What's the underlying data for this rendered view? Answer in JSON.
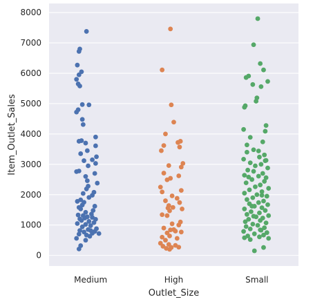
{
  "chart_data": {
    "type": "scatter",
    "subtype": "strip",
    "xlabel": "Outlet_Size",
    "ylabel": "Item_Outlet_Sales",
    "categories": [
      "Medium",
      "High",
      "Small"
    ],
    "ylim": [
      -350,
      8300
    ],
    "yticks": [
      0,
      1000,
      2000,
      3000,
      4000,
      5000,
      6000,
      7000,
      8000
    ],
    "grid": true,
    "background": "#eaeaf2",
    "grid_color": "#ffffff",
    "series": [
      {
        "category": "Medium",
        "color": "#4c72b0",
        "points": [
          [
            -0.05,
            7380
          ],
          [
            -0.13,
            6800
          ],
          [
            -0.14,
            6720
          ],
          [
            -0.16,
            6270
          ],
          [
            -0.11,
            6050
          ],
          [
            -0.14,
            5950
          ],
          [
            -0.17,
            5800
          ],
          [
            -0.15,
            5650
          ],
          [
            -0.13,
            5580
          ],
          [
            -0.1,
            4970
          ],
          [
            -0.02,
            4960
          ],
          [
            -0.15,
            4800
          ],
          [
            -0.17,
            4720
          ],
          [
            -0.1,
            4480
          ],
          [
            -0.09,
            4310
          ],
          [
            0.06,
            3900
          ],
          [
            -0.14,
            3760
          ],
          [
            -0.06,
            3700
          ],
          [
            -0.11,
            3780
          ],
          [
            0.06,
            3610
          ],
          [
            -0.04,
            3450
          ],
          [
            -0.12,
            3350
          ],
          [
            0.07,
            3250
          ],
          [
            0.02,
            3150
          ],
          [
            -0.08,
            3120
          ],
          [
            0.06,
            3030
          ],
          [
            -0.03,
            2950
          ],
          [
            -0.14,
            2780
          ],
          [
            -0.17,
            2760
          ],
          [
            0.05,
            2700
          ],
          [
            -0.06,
            2600
          ],
          [
            -0.04,
            2460
          ],
          [
            0.08,
            2380
          ],
          [
            -0.03,
            2280
          ],
          [
            -0.05,
            2190
          ],
          [
            0.04,
            2080
          ],
          [
            -0.09,
            2040
          ],
          [
            0.02,
            1980
          ],
          [
            -0.02,
            1910
          ],
          [
            -0.12,
            1830
          ],
          [
            -0.16,
            1780
          ],
          [
            -0.08,
            1750
          ],
          [
            -0.1,
            1660
          ],
          [
            0.05,
            1620
          ],
          [
            -0.14,
            1580
          ],
          [
            -0.12,
            1530
          ],
          [
            0.03,
            1480
          ],
          [
            -0.06,
            1420
          ],
          [
            0.01,
            1360
          ],
          [
            -0.15,
            1330
          ],
          [
            -0.09,
            1310
          ],
          [
            -0.04,
            1270
          ],
          [
            0.02,
            1250
          ],
          [
            -0.07,
            1230
          ],
          [
            -0.13,
            1200
          ],
          [
            0.06,
            1190
          ],
          [
            -0.11,
            1150
          ],
          [
            -0.02,
            1120
          ],
          [
            0.04,
            1080
          ],
          [
            -0.16,
            1050
          ],
          [
            -0.06,
            1020
          ],
          [
            0.0,
            980
          ],
          [
            -0.1,
            940
          ],
          [
            0.07,
            880
          ],
          [
            -0.03,
            850
          ],
          [
            -0.13,
            820
          ],
          [
            0.05,
            790
          ],
          [
            -0.08,
            770
          ],
          [
            0.02,
            730
          ],
          [
            -0.14,
            700
          ],
          [
            0.1,
            720
          ],
          [
            -0.05,
            670
          ],
          [
            -0.01,
            630
          ],
          [
            -0.17,
            560
          ],
          [
            -0.06,
            500
          ],
          [
            -0.12,
            320
          ],
          [
            -0.14,
            210
          ],
          [
            0.0,
            820
          ]
        ]
      },
      {
        "category": "High",
        "color": "#dd8452",
        "points": [
          [
            -0.04,
            7460
          ],
          [
            -0.14,
            6110
          ],
          [
            -0.03,
            4960
          ],
          [
            0.0,
            4390
          ],
          [
            -0.1,
            4000
          ],
          [
            0.08,
            3760
          ],
          [
            0.05,
            3720
          ],
          [
            -0.12,
            3620
          ],
          [
            -0.15,
            3450
          ],
          [
            0.07,
            3570
          ],
          [
            0.11,
            3030
          ],
          [
            -0.06,
            2960
          ],
          [
            0.09,
            2910
          ],
          [
            -0.12,
            2710
          ],
          [
            0.06,
            2620
          ],
          [
            -0.04,
            2540
          ],
          [
            -0.08,
            2490
          ],
          [
            -0.16,
            2250
          ],
          [
            0.09,
            2140
          ],
          [
            -0.14,
            2090
          ],
          [
            -0.02,
            1960
          ],
          [
            0.04,
            1880
          ],
          [
            -0.1,
            1800
          ],
          [
            0.07,
            1740
          ],
          [
            -0.06,
            1640
          ],
          [
            -0.01,
            1580
          ],
          [
            0.1,
            1530
          ],
          [
            -0.05,
            1470
          ],
          [
            -0.14,
            1340
          ],
          [
            -0.08,
            1310
          ],
          [
            0.08,
            1100
          ],
          [
            -0.02,
            1040
          ],
          [
            0.06,
            1000
          ],
          [
            -0.12,
            900
          ],
          [
            -0.04,
            840
          ],
          [
            0.02,
            800
          ],
          [
            0.09,
            770
          ],
          [
            -0.08,
            740
          ],
          [
            -0.05,
            640
          ],
          [
            -0.14,
            600
          ],
          [
            0.04,
            560
          ],
          [
            -0.1,
            500
          ],
          [
            -0.16,
            400
          ],
          [
            -0.06,
            360
          ],
          [
            0.02,
            330
          ],
          [
            -0.13,
            300
          ],
          [
            -0.03,
            260
          ],
          [
            0.06,
            270
          ],
          [
            -0.09,
            230
          ],
          [
            -0.05,
            200
          ],
          [
            0.0,
            850
          ],
          [
            -0.07,
            1560
          ]
        ]
      },
      {
        "category": "Small",
        "color": "#55a868",
        "points": [
          [
            0.01,
            7800
          ],
          [
            -0.04,
            6940
          ],
          [
            0.04,
            6320
          ],
          [
            0.08,
            6110
          ],
          [
            -0.1,
            5910
          ],
          [
            -0.13,
            5860
          ],
          [
            0.13,
            5730
          ],
          [
            -0.05,
            5630
          ],
          [
            0.05,
            5560
          ],
          [
            0.0,
            5190
          ],
          [
            -0.01,
            5080
          ],
          [
            -0.14,
            4930
          ],
          [
            -0.15,
            4880
          ],
          [
            0.11,
            4280
          ],
          [
            -0.16,
            4150
          ],
          [
            0.1,
            4090
          ],
          [
            -0.08,
            3890
          ],
          [
            0.07,
            3740
          ],
          [
            -0.12,
            3640
          ],
          [
            -0.04,
            3480
          ],
          [
            0.02,
            3440
          ],
          [
            -0.12,
            3400
          ],
          [
            0.09,
            3310
          ],
          [
            0.03,
            3240
          ],
          [
            -0.16,
            3170
          ],
          [
            0.11,
            3130
          ],
          [
            -0.08,
            3050
          ],
          [
            0.05,
            3000
          ],
          [
            -0.02,
            2950
          ],
          [
            0.13,
            2880
          ],
          [
            -0.11,
            2810
          ],
          [
            -0.04,
            2770
          ],
          [
            0.07,
            2700
          ],
          [
            -0.15,
            2640
          ],
          [
            0.02,
            2610
          ],
          [
            0.11,
            2560
          ],
          [
            -0.06,
            2500
          ],
          [
            0.09,
            2440
          ],
          [
            -0.13,
            2390
          ],
          [
            0.04,
            2320
          ],
          [
            -0.02,
            2260
          ],
          [
            0.14,
            2210
          ],
          [
            -0.09,
            2160
          ],
          [
            0.06,
            2100
          ],
          [
            -0.15,
            2050
          ],
          [
            0.0,
            2000
          ],
          [
            0.12,
            1950
          ],
          [
            -0.05,
            1900
          ],
          [
            -0.12,
            1840
          ],
          [
            0.08,
            1790
          ],
          [
            0.02,
            1740
          ],
          [
            -0.09,
            1700
          ],
          [
            0.13,
            1670
          ],
          [
            -0.03,
            1620
          ],
          [
            0.06,
            1570
          ],
          [
            -0.15,
            1530
          ],
          [
            0.1,
            1480
          ],
          [
            -0.07,
            1440
          ],
          [
            0.03,
            1400
          ],
          [
            -0.12,
            1350
          ],
          [
            0.14,
            1310
          ],
          [
            -0.01,
            1270
          ],
          [
            0.07,
            1230
          ],
          [
            -0.1,
            1190
          ],
          [
            0.04,
            1150
          ],
          [
            -0.14,
            1110
          ],
          [
            0.11,
            1070
          ],
          [
            -0.05,
            1030
          ],
          [
            0.01,
            990
          ],
          [
            -0.13,
            950
          ],
          [
            0.09,
            910
          ],
          [
            -0.08,
            870
          ],
          [
            0.05,
            830
          ],
          [
            -0.16,
            790
          ],
          [
            0.12,
            750
          ],
          [
            -0.03,
            710
          ],
          [
            0.08,
            670
          ],
          [
            -0.11,
            640
          ],
          [
            0.03,
            610
          ],
          [
            -0.15,
            580
          ],
          [
            0.14,
            560
          ],
          [
            -0.06,
            1620
          ],
          [
            0.06,
            1980
          ],
          [
            -0.1,
            2580
          ],
          [
            0.1,
            3120
          ],
          [
            -0.04,
            1290
          ],
          [
            0.08,
            260
          ],
          [
            -0.03,
            150
          ],
          [
            0.04,
            840
          ],
          [
            -0.08,
            520
          ]
        ]
      }
    ]
  }
}
